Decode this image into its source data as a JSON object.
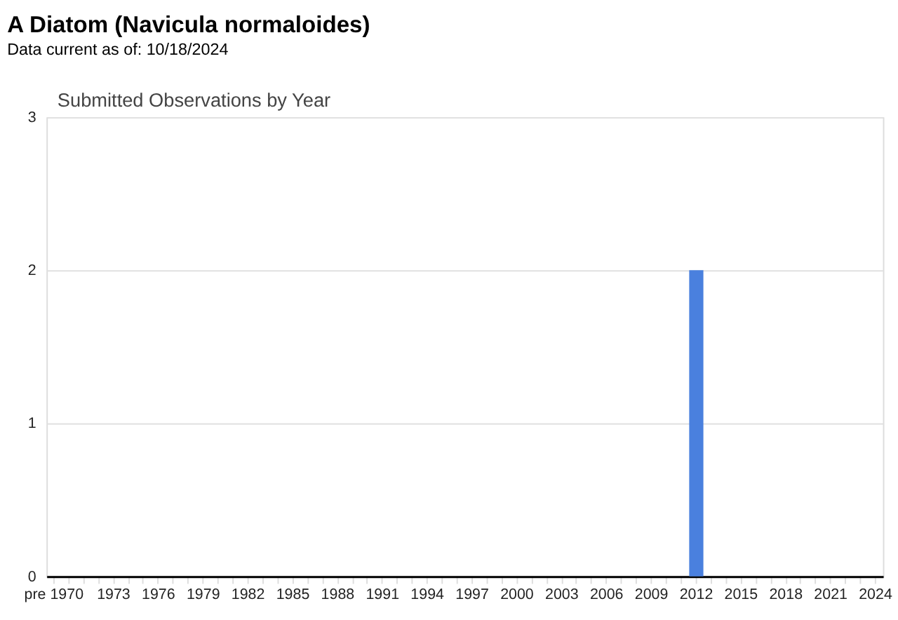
{
  "chart_data": {
    "type": "bar",
    "title": "A Diatom   (Navicula normaloides)",
    "subtitle": "Data current as of: 10/18/2024",
    "annotations": [
      "Submitted Observations by Year"
    ],
    "categories": [
      "pre 1970",
      null,
      null,
      null,
      "1973",
      null,
      null,
      "1976",
      null,
      null,
      "1979",
      null,
      null,
      "1982",
      null,
      null,
      "1985",
      null,
      null,
      "1988",
      null,
      null,
      "1991",
      null,
      null,
      "1994",
      null,
      null,
      "1997",
      null,
      null,
      "2000",
      null,
      null,
      "2003",
      null,
      null,
      "2006",
      null,
      null,
      "2009",
      null,
      null,
      "2012",
      null,
      null,
      "2015",
      null,
      null,
      "2018",
      null,
      null,
      "2021",
      null,
      null,
      "2024"
    ],
    "values": [
      0,
      0,
      0,
      0,
      0,
      0,
      0,
      0,
      0,
      0,
      0,
      0,
      0,
      0,
      0,
      0,
      0,
      0,
      0,
      0,
      0,
      0,
      0,
      0,
      0,
      0,
      0,
      0,
      0,
      0,
      0,
      0,
      0,
      0,
      0,
      0,
      0,
      0,
      0,
      0,
      0,
      0,
      0,
      2,
      0,
      0,
      0,
      0,
      0,
      0,
      0,
      0,
      0,
      0,
      0,
      0
    ],
    "color": "#4a80de",
    "ylim": [
      0,
      3
    ],
    "yticks": [
      0,
      1,
      2,
      3
    ],
    "grid": "y"
  }
}
